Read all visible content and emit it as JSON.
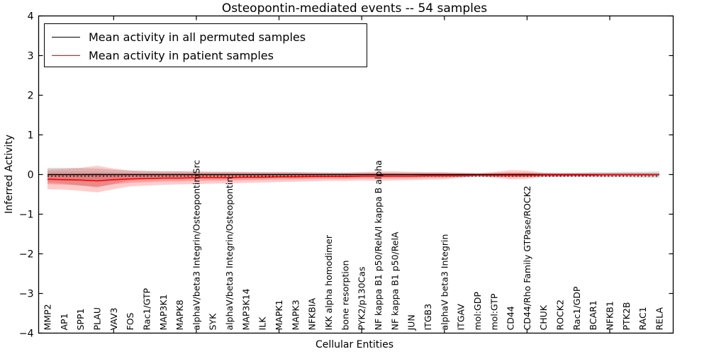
{
  "figure": {
    "title": "Osteopontin-mediated events -- 54 samples",
    "xlabel": "Cellular Entities",
    "ylabel": "Inferred Activity"
  },
  "legend": {
    "items": [
      {
        "label": "Mean activity in all permuted samples",
        "color": "#000000"
      },
      {
        "label": "Mean activity in patient samples",
        "color": "#ff0000"
      }
    ]
  },
  "chart_data": {
    "type": "line",
    "title": "Osteopontin-mediated events -- 54 samples",
    "xlabel": "Cellular Entities",
    "ylabel": "Inferred Activity",
    "ylim": [
      -4,
      4
    ],
    "yticks": [
      {
        "value": 4,
        "label": "4"
      },
      {
        "value": 3,
        "label": "3"
      },
      {
        "value": 2,
        "label": "2"
      },
      {
        "value": 1,
        "label": "1"
      },
      {
        "value": 0,
        "label": "0"
      },
      {
        "value": -1,
        "label": "−1"
      },
      {
        "value": -2,
        "label": "−2"
      },
      {
        "value": -3,
        "label": "−3"
      },
      {
        "value": -4,
        "label": "−4"
      }
    ],
    "grid": false,
    "legend_position": "upper left",
    "categories": [
      "MMP2",
      "AP1",
      "SPP1",
      "PLAU",
      "VAV3",
      "FOS",
      "Rac1/GTP",
      "MAP3K1",
      "MAPK8",
      "alphaV/beta3 Integrin/Osteopontin/Src",
      "SYK",
      "alphaV/beta3 Integrin/Osteopontin",
      "MAP3K14",
      "ILK",
      "MAPK1",
      "MAPK3",
      "NFKBIA",
      "IKK alpha homodimer",
      "bone resorption",
      "PYK2/p130Cas",
      "NF kappa B1 p50/RelA/I kappa B alpha",
      "NF kappa B1 p50/RelA",
      "JUN",
      "ITGB3",
      "alphaV beta3 Integrin",
      "ITGAV",
      "mol:GDP",
      "mol:GTP",
      "CD44",
      "CD44/Rho Family GTPase/ROCK2",
      "CHUK",
      "ROCK2",
      "Rac1/GDP",
      "BCAR1",
      "NFKB1",
      "PTK2B",
      "RAC1",
      "RELA"
    ],
    "series": [
      {
        "name": "Mean activity in all permuted samples",
        "color": "#000000",
        "band_color": "#bfbfbf",
        "values": [
          0,
          0,
          0,
          0,
          0,
          0,
          0,
          0,
          0,
          0,
          0,
          0,
          0,
          0,
          0,
          0,
          0,
          0,
          0,
          0,
          0,
          0,
          0,
          0,
          0,
          0,
          0,
          0,
          0,
          0,
          0,
          0,
          0,
          0,
          0,
          0,
          0,
          0
        ],
        "band_upper": [
          0.17,
          0.17,
          0.16,
          0.15,
          0.12,
          0.1,
          0.09,
          0.08,
          0.08,
          0.07,
          0.07,
          0.07,
          0.06,
          0.06,
          0.06,
          0.06,
          0.05,
          0.05,
          0.05,
          0.05,
          0.05,
          0.05,
          0.05,
          0.05,
          0.05,
          0.05,
          0.05,
          0.05,
          0.05,
          0.05,
          0.05,
          0.05,
          0.05,
          0.06,
          0.06,
          0.07,
          0.07,
          0.08
        ],
        "band_lower": [
          -0.2,
          -0.23,
          -0.28,
          -0.33,
          -0.23,
          -0.15,
          -0.12,
          -0.11,
          -0.1,
          -0.09,
          -0.09,
          -0.08,
          -0.08,
          -0.08,
          -0.07,
          -0.07,
          -0.07,
          -0.06,
          -0.06,
          -0.06,
          -0.06,
          -0.06,
          -0.06,
          -0.06,
          -0.06,
          -0.06,
          -0.06,
          -0.06,
          -0.06,
          -0.06,
          -0.06,
          -0.06,
          -0.06,
          -0.07,
          -0.07,
          -0.07,
          -0.08,
          -0.08
        ]
      },
      {
        "name": "Mean activity in patient samples",
        "color": "#ff0000",
        "band_color": "#ff0000",
        "values": [
          -0.12,
          -0.13,
          -0.14,
          -0.16,
          -0.13,
          -0.11,
          -0.1,
          -0.09,
          -0.09,
          -0.08,
          -0.08,
          -0.08,
          -0.07,
          -0.07,
          -0.06,
          -0.06,
          -0.05,
          -0.05,
          -0.05,
          -0.04,
          -0.04,
          -0.04,
          -0.04,
          -0.03,
          -0.03,
          -0.03,
          -0.02,
          -0.02,
          -0.02,
          -0.02,
          -0.01,
          -0.01,
          -0.01,
          -0.01,
          0.0,
          0.0,
          0.0,
          0.0
        ],
        "band_upper": [
          0.13,
          0.14,
          0.17,
          0.22,
          0.15,
          0.1,
          0.09,
          0.08,
          0.08,
          0.08,
          0.07,
          0.07,
          0.07,
          0.06,
          0.06,
          0.06,
          0.06,
          0.05,
          0.05,
          0.06,
          0.08,
          0.08,
          0.07,
          0.06,
          0.06,
          0.04,
          0.02,
          0.06,
          0.11,
          0.1,
          0.04,
          0.03,
          0.03,
          0.03,
          0.03,
          0.03,
          0.03,
          0.02
        ],
        "band_lower": [
          -0.37,
          -0.38,
          -0.41,
          -0.45,
          -0.37,
          -0.3,
          -0.28,
          -0.26,
          -0.25,
          -0.24,
          -0.23,
          -0.22,
          -0.21,
          -0.2,
          -0.19,
          -0.18,
          -0.17,
          -0.16,
          -0.16,
          -0.15,
          -0.16,
          -0.15,
          -0.14,
          -0.13,
          -0.12,
          -0.08,
          -0.04,
          -0.08,
          -0.12,
          -0.11,
          -0.06,
          -0.06,
          -0.05,
          -0.05,
          -0.05,
          -0.04,
          -0.04,
          -0.03
        ]
      }
    ]
  }
}
